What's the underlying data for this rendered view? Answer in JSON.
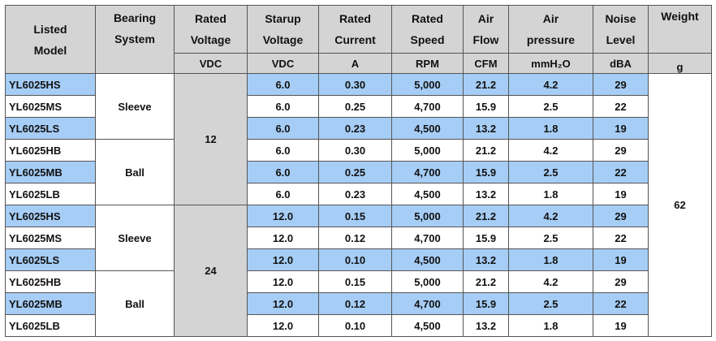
{
  "headers": [
    {
      "line1": "Listed",
      "line2": "Model",
      "unit": ""
    },
    {
      "line1": "Bearing",
      "line2": "System",
      "unit": ""
    },
    {
      "line1": "Rated",
      "line2": "Voltage",
      "unit": "VDC"
    },
    {
      "line1": "Starup",
      "line2": "Voltage",
      "unit": "VDC"
    },
    {
      "line1": "Rated",
      "line2": "Current",
      "unit": "A"
    },
    {
      "line1": "Rated",
      "line2": "Speed",
      "unit": "RPM"
    },
    {
      "line1": "Air",
      "line2": "Flow",
      "unit": "CFM"
    },
    {
      "line1": "Air",
      "line2": "pressure",
      "unit": "mmH₂O"
    },
    {
      "line1": "Noise",
      "line2": "Level",
      "unit": "dBA"
    },
    {
      "line1": "Weight",
      "line2": "",
      "unit": "g"
    }
  ],
  "bearing_groups": [
    "Sleeve",
    "Ball",
    "Sleeve",
    "Ball"
  ],
  "voltage_groups": [
    "12",
    "24"
  ],
  "weight": "62",
  "rows": [
    {
      "model": "YL6025HS",
      "startup": "6.0",
      "current": "0.30",
      "speed": "5,000",
      "flow": "21.2",
      "pressure": "4.2",
      "noise": "29"
    },
    {
      "model": "YL6025MS",
      "startup": "6.0",
      "current": "0.25",
      "speed": "4,700",
      "flow": "15.9",
      "pressure": "2.5",
      "noise": "22"
    },
    {
      "model": "YL6025LS",
      "startup": "6.0",
      "current": "0.23",
      "speed": "4,500",
      "flow": "13.2",
      "pressure": "1.8",
      "noise": "19"
    },
    {
      "model": "YL6025HB",
      "startup": "6.0",
      "current": "0.30",
      "speed": "5,000",
      "flow": "21.2",
      "pressure": "4.2",
      "noise": "29"
    },
    {
      "model": "YL6025MB",
      "startup": "6.0",
      "current": "0.25",
      "speed": "4,700",
      "flow": "15.9",
      "pressure": "2.5",
      "noise": "22"
    },
    {
      "model": "YL6025LB",
      "startup": "6.0",
      "current": "0.23",
      "speed": "4,500",
      "flow": "13.2",
      "pressure": "1.8",
      "noise": "19"
    },
    {
      "model": "YL6025HS",
      "startup": "12.0",
      "current": "0.15",
      "speed": "5,000",
      "flow": "21.2",
      "pressure": "4.2",
      "noise": "29"
    },
    {
      "model": "YL6025MS",
      "startup": "12.0",
      "current": "0.12",
      "speed": "4,700",
      "flow": "15.9",
      "pressure": "2.5",
      "noise": "22"
    },
    {
      "model": "YL6025LS",
      "startup": "12.0",
      "current": "0.10",
      "speed": "4,500",
      "flow": "13.2",
      "pressure": "1.8",
      "noise": "19"
    },
    {
      "model": "YL6025HB",
      "startup": "12.0",
      "current": "0.15",
      "speed": "5,000",
      "flow": "21.2",
      "pressure": "4.2",
      "noise": "29"
    },
    {
      "model": "YL6025MB",
      "startup": "12.0",
      "current": "0.12",
      "speed": "4,700",
      "flow": "15.9",
      "pressure": "2.5",
      "noise": "22"
    },
    {
      "model": "YL6025LB",
      "startup": "12.0",
      "current": "0.10",
      "speed": "4,500",
      "flow": "13.2",
      "pressure": "1.8",
      "noise": "19"
    }
  ],
  "colors": {
    "header_bg": "#d4d4d4",
    "highlight_row": "#a6cdf5",
    "plain_row": "#ffffff"
  }
}
